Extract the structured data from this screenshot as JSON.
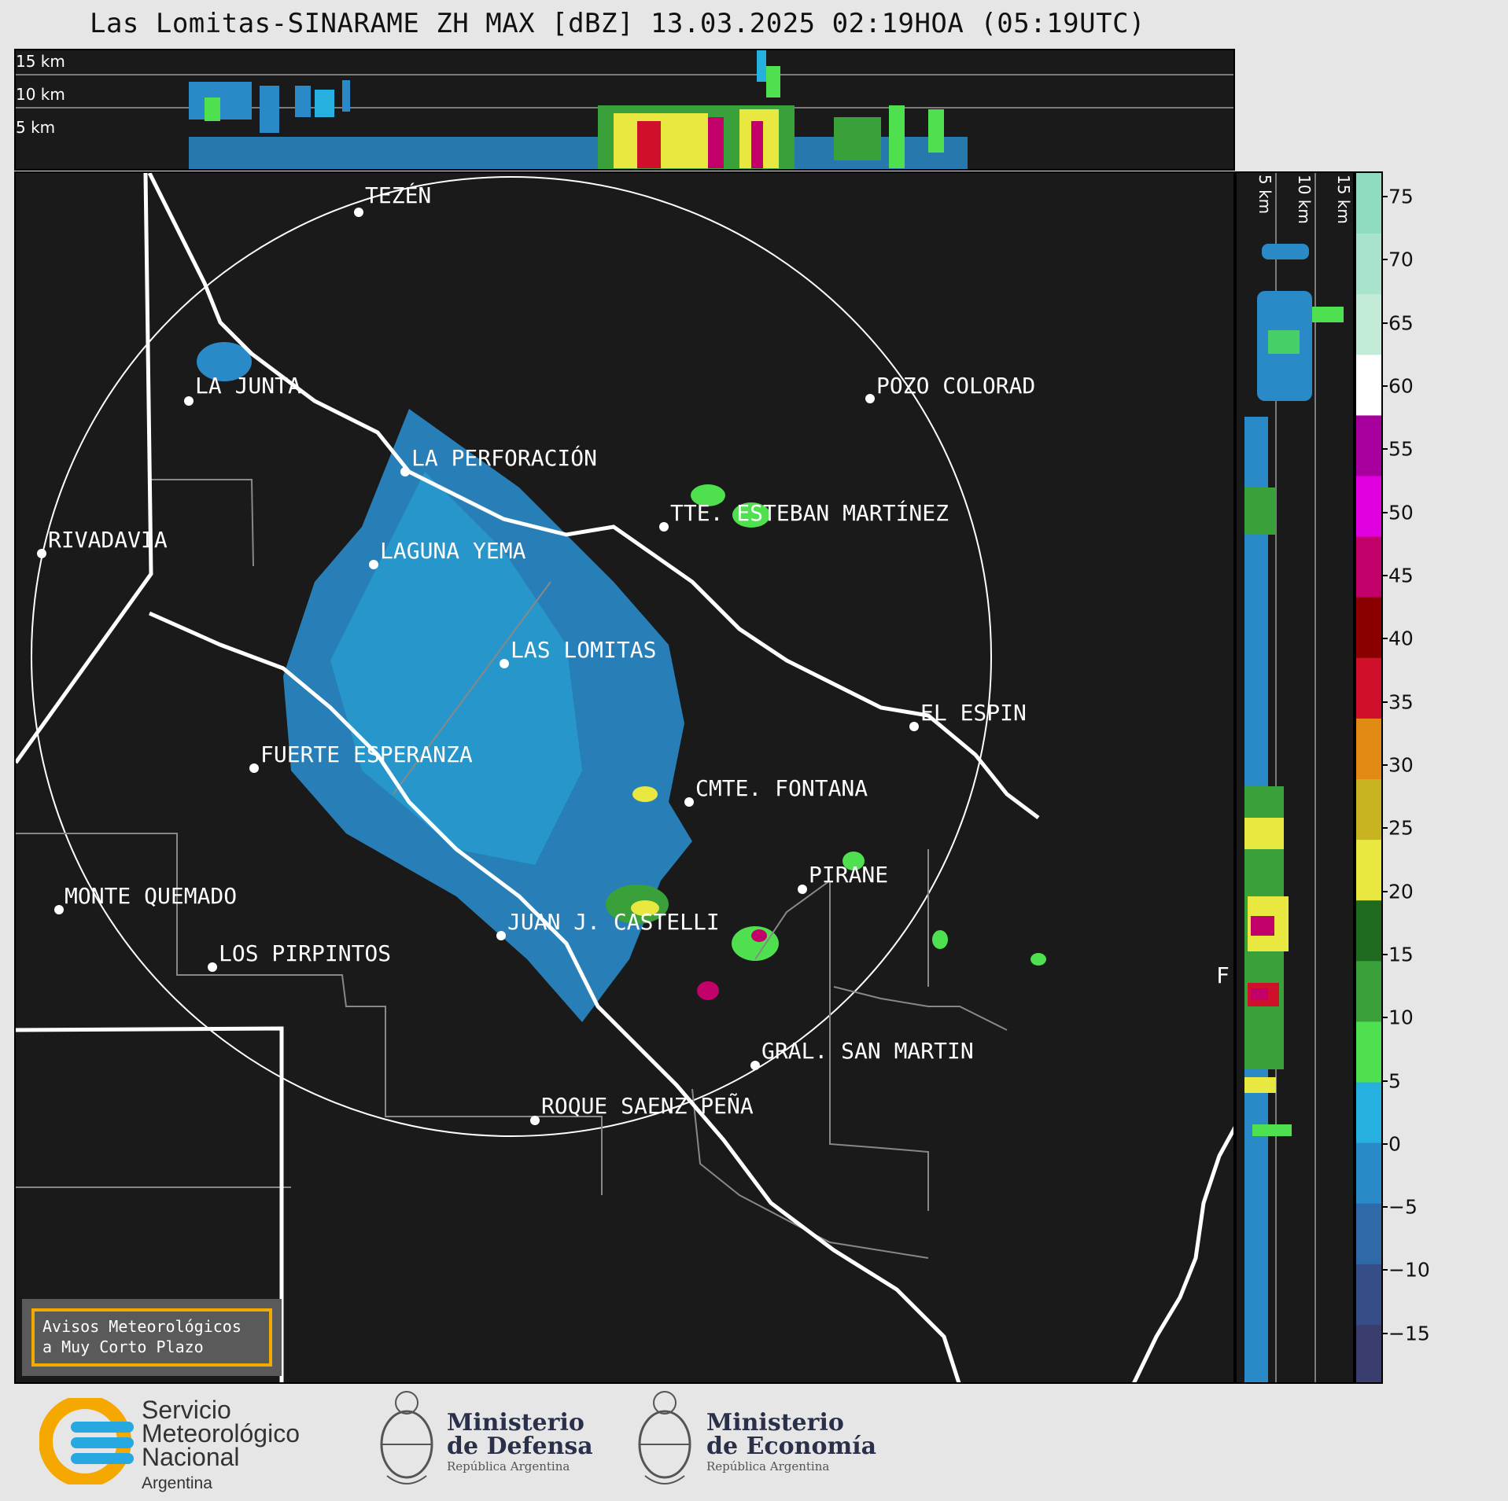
{
  "title": "Las Lomitas-SINARAME ZH MAX [dBZ] 13.03.2025 02:19HOA (05:19UTC)",
  "top_profile": {
    "altitude_labels": [
      "15 km",
      "10 km",
      "5 km"
    ]
  },
  "side_profile": {
    "altitude_labels": [
      "5 km",
      "10 km",
      "15 km"
    ]
  },
  "colorbar": {
    "ticks": [
      "75",
      "70",
      "65",
      "60",
      "55",
      "50",
      "45",
      "40",
      "35",
      "30",
      "25",
      "20",
      "15",
      "10",
      "5",
      "0",
      "−5",
      "−10",
      "−15"
    ],
    "colors": [
      "#8fdcbf",
      "#a8e4cc",
      "#c2ecd8",
      "#ffffff",
      "#a8009f",
      "#e000e0",
      "#c2006a",
      "#8a0000",
      "#d0102a",
      "#e08a14",
      "#c8b420",
      "#e8e840",
      "#1f6a1f",
      "#3aa03a",
      "#4ee04e",
      "#26b0e0",
      "#2a8ac8",
      "#2f6aa8",
      "#354e88",
      "#3a3e6e"
    ],
    "unit": "dBZ"
  },
  "map": {
    "cities": [
      {
        "name": "TEZÉN"
      },
      {
        "name": "LA JUNTA"
      },
      {
        "name": "POZO COLORAD"
      },
      {
        "name": "LA PERFORACIÓN"
      },
      {
        "name": "TTE. ESTEBAN MARTÍNEZ"
      },
      {
        "name": "RIVADAVIA"
      },
      {
        "name": "LAGUNA YEMA"
      },
      {
        "name": "LAS LOMITAS"
      },
      {
        "name": "EL ESPIN"
      },
      {
        "name": "FUERTE ESPERANZA"
      },
      {
        "name": "CMTE. FONTANA"
      },
      {
        "name": "PIRANE"
      },
      {
        "name": "MONTE QUEMADO"
      },
      {
        "name": "JUAN J. CASTELLI"
      },
      {
        "name": "LOS PIRPINTOS"
      },
      {
        "name": "F"
      },
      {
        "name": "GRAL. SAN MARTIN"
      },
      {
        "name": "ROQUE SAENZ PEÑA"
      }
    ]
  },
  "avisos": {
    "line1": "Avisos Meteorológicos",
    "line2": "a Muy Corto Plazo"
  },
  "logos": {
    "smn": {
      "line1": "Servicio",
      "line2": "Meteorológico",
      "line3": "Nacional",
      "sub": "Argentina"
    },
    "defensa": {
      "line1": "Ministerio",
      "line2": "de Defensa",
      "sub": "República Argentina"
    },
    "economia": {
      "line1": "Ministerio",
      "line2": "de Economía",
      "sub": "República Argentina"
    }
  }
}
